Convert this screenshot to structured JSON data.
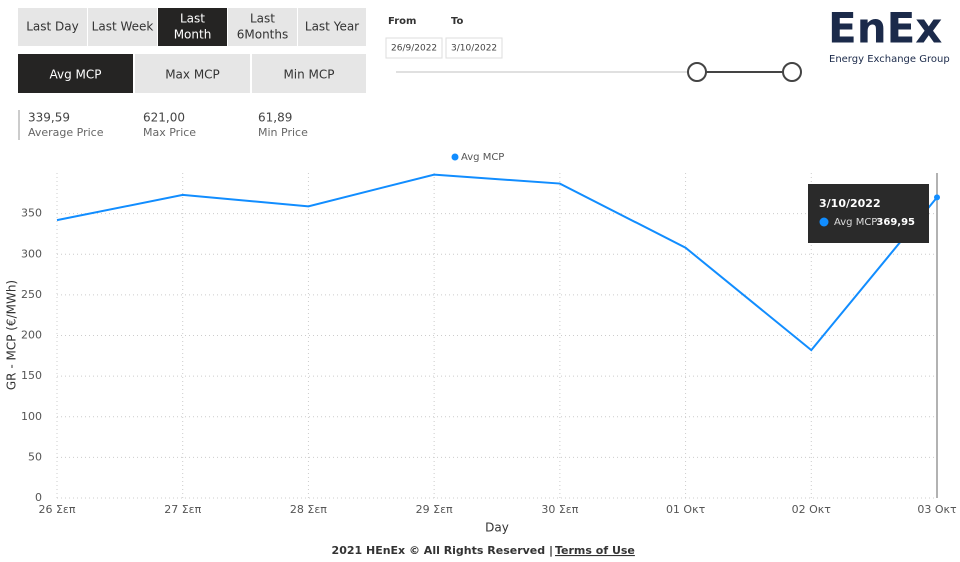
{
  "time_buttons": [
    [
      "Last Day"
    ],
    [
      "Last Week"
    ],
    [
      "Last",
      "Month"
    ],
    [
      "Last",
      "6Months"
    ],
    [
      "Last Year"
    ]
  ],
  "active_time_button": 2,
  "measure_buttons": [
    "Avg MCP",
    "Max MCP",
    "Min MCP"
  ],
  "active_measure_button": 0,
  "date_range": {
    "from_label": "From",
    "to_label": "To",
    "from": "26/9/2022",
    "to": "3/10/2022"
  },
  "logo": {
    "title": "EnEx",
    "subtitle": "Energy Exchange Group"
  },
  "stats": [
    {
      "value": "339,59",
      "label": "Average Price"
    },
    {
      "value": "621,00",
      "label": "Max Price"
    },
    {
      "value": "61,89",
      "label": "Min Price"
    }
  ],
  "chart_data": {
    "type": "line",
    "x_label": "Day",
    "y_label": "GR - MCP (€/MWh)",
    "categories": [
      "26 Σεπ",
      "27 Σεπ",
      "28 Σεπ",
      "29 Σεπ",
      "30 Σεπ",
      "01 Οκτ",
      "02 Οκτ",
      "03 Οκτ"
    ],
    "series": [
      {
        "name": "Avg MCP",
        "color": "#118dff",
        "values": [
          342,
          373,
          359,
          398,
          387,
          308,
          182,
          369.95
        ]
      }
    ],
    "ylim": [
      0,
      400
    ],
    "yticks": [
      0,
      50,
      100,
      150,
      200,
      250,
      300,
      350
    ],
    "grid": true,
    "legend": "top",
    "tooltip": {
      "title": "3/10/2022",
      "value": "369,95",
      "index": 7
    }
  },
  "footer": {
    "text": "2021 HEnEx © All Rights Reserved | ",
    "link": "Terms of Use"
  }
}
